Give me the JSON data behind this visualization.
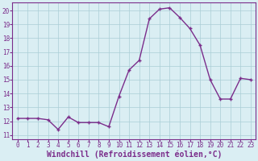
{
  "x": [
    0,
    1,
    2,
    3,
    4,
    5,
    6,
    7,
    8,
    9,
    10,
    11,
    12,
    13,
    14,
    15,
    16,
    17,
    18,
    19,
    20,
    21,
    22,
    23
  ],
  "y": [
    12.2,
    12.2,
    12.2,
    12.1,
    11.4,
    12.3,
    11.9,
    11.9,
    11.9,
    11.6,
    13.8,
    15.7,
    16.4,
    19.4,
    20.1,
    20.2,
    19.5,
    18.7,
    17.5,
    15.0,
    13.6,
    13.6,
    15.1,
    15.0
  ],
  "line_color": "#7B2D8B",
  "marker": "+",
  "bg_color": "#DAEEF3",
  "grid_color": "#AACDD6",
  "xlabel": "Windchill (Refroidissement éolien,°C)",
  "xlabel_color": "#7B2D8B",
  "tick_color": "#7B2D8B",
  "yticks": [
    11,
    12,
    13,
    14,
    15,
    16,
    17,
    18,
    19,
    20
  ],
  "xticks": [
    0,
    1,
    2,
    3,
    4,
    5,
    6,
    7,
    8,
    9,
    10,
    11,
    12,
    13,
    14,
    15,
    16,
    17,
    18,
    19,
    20,
    21,
    22,
    23
  ],
  "tick_fontsize": 5.5,
  "xlabel_fontsize": 7.0,
  "line_width": 1.0,
  "marker_size": 3.5
}
